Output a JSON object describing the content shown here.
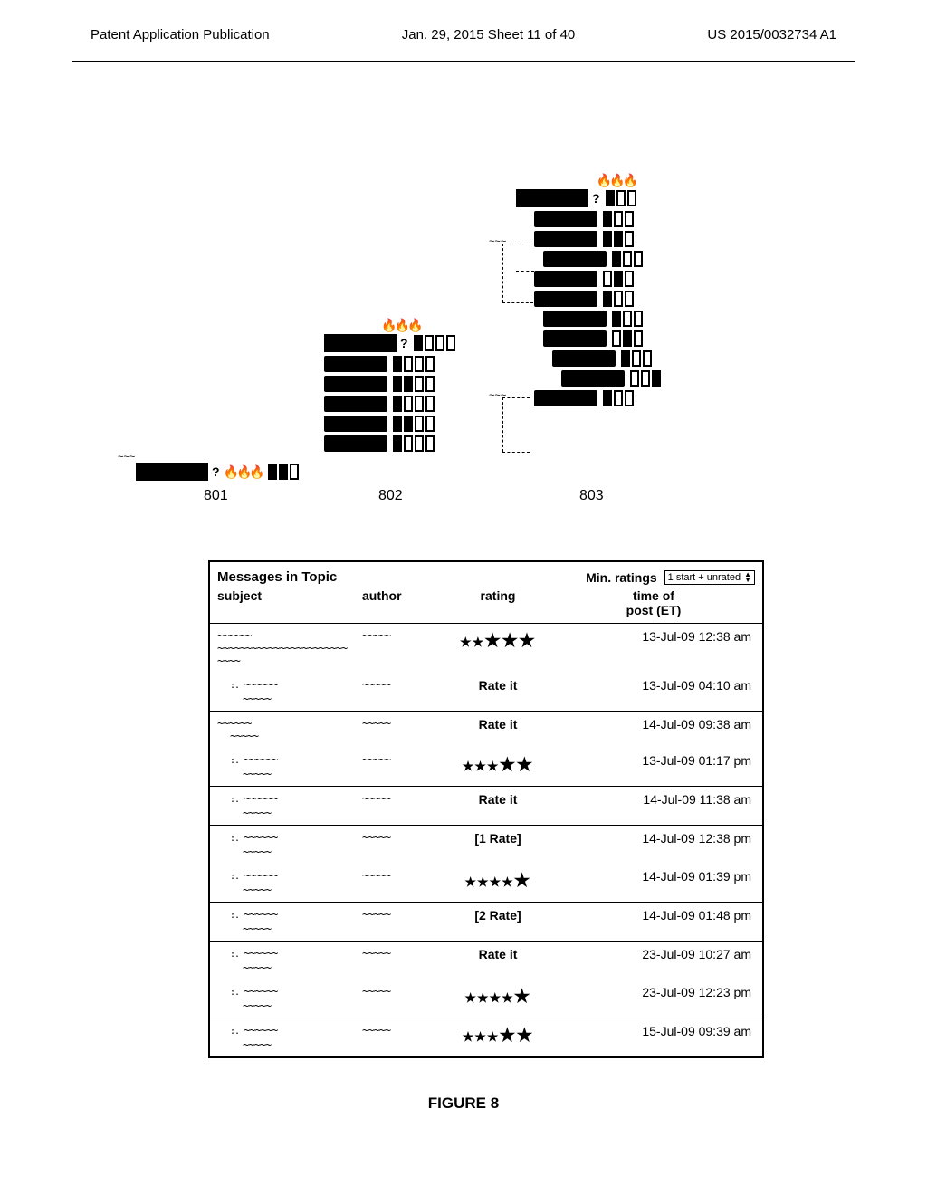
{
  "header": {
    "left": "Patent Application Publication",
    "center": "Jan. 29, 2015  Sheet 11 of 40",
    "right": "US 2015/0032734 A1"
  },
  "diagram": {
    "refs": {
      "a": "801",
      "b": "802",
      "c": "803"
    }
  },
  "table": {
    "title": "Messages in Topic",
    "min_ratings_label": "Min. ratings",
    "select_value": "1 start + unrated",
    "columns": {
      "subject": "subject",
      "author": "author",
      "rating": "rating",
      "time1": "time of",
      "time2": "post (ET)"
    },
    "rows": [
      {
        "rating_type": "stars",
        "stars_small": 2,
        "stars_large": 3,
        "time": "13-Jul-09 12:38 am",
        "indent": 0,
        "long": true
      },
      {
        "rating_type": "text",
        "rating_text": "Rate it",
        "time": "13-Jul-09 04:10 am",
        "indent": 1
      },
      {
        "rating_type": "text",
        "rating_text": "Rate it",
        "time": "14-Jul-09 09:38 am",
        "indent": 0,
        "sep": true
      },
      {
        "rating_type": "stars",
        "stars_small": 3,
        "stars_large": 2,
        "time": "13-Jul-09 01:17 pm",
        "indent": 1
      },
      {
        "rating_type": "text",
        "rating_text": "Rate it",
        "time": "14-Jul-09 11:38 am",
        "indent": 1,
        "sep": true
      },
      {
        "rating_type": "text",
        "rating_text": "[1 Rate]",
        "time": "14-Jul-09 12:38 pm",
        "indent": 1,
        "sep": true
      },
      {
        "rating_type": "stars",
        "stars_small": 4,
        "stars_large": 1,
        "time": "14-Jul-09 01:39 pm",
        "indent": 1
      },
      {
        "rating_type": "text",
        "rating_text": "[2 Rate]",
        "time": "14-Jul-09 01:48 pm",
        "indent": 1,
        "sep": true
      },
      {
        "rating_type": "text",
        "rating_text": "Rate it",
        "time": "23-Jul-09 10:27 am",
        "indent": 1,
        "sep": true
      },
      {
        "rating_type": "stars",
        "stars_small": 4,
        "stars_large": 1,
        "time": "23-Jul-09 12:23 pm",
        "indent": 1
      },
      {
        "rating_type": "stars",
        "stars_small": 3,
        "stars_large": 2,
        "time": "15-Jul-09 09:39 am",
        "indent": 1,
        "sep": true
      }
    ]
  },
  "figure_label": "FIGURE 8"
}
